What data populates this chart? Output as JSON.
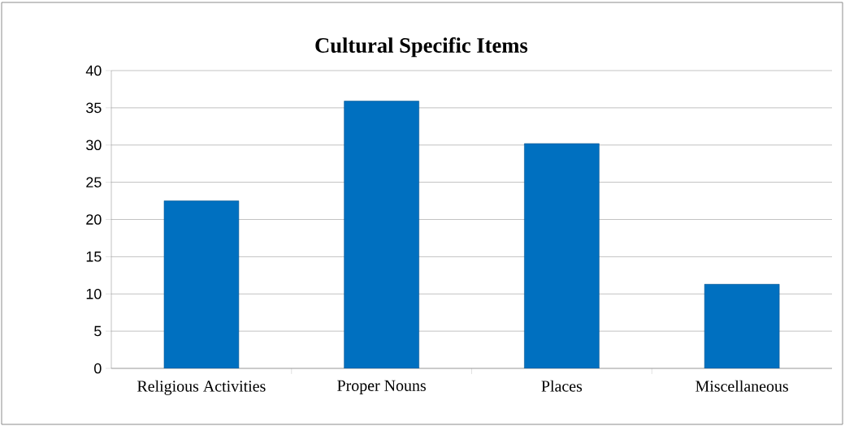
{
  "chart_data": {
    "type": "bar",
    "title": "Cultural Specific Items",
    "categories": [
      "Religious Activities",
      "Proper Nouns",
      "Places",
      "Miscellaneous"
    ],
    "values": [
      22.5,
      35.9,
      30.2,
      11.3
    ],
    "color": "#0070c0",
    "ylim": [
      0,
      40
    ],
    "yticks": [
      0,
      5,
      10,
      15,
      20,
      25,
      30,
      35,
      40
    ],
    "grid": "y"
  }
}
